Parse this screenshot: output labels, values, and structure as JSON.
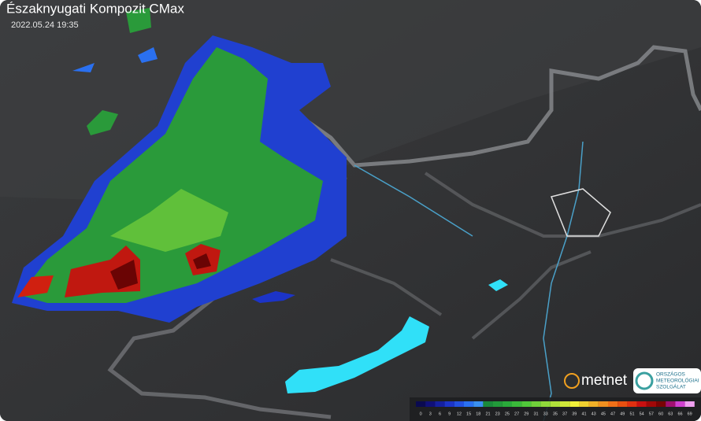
{
  "header": {
    "title": "Északnyugati Kompozit CMax",
    "timestamp": "2022.05.24 19:35"
  },
  "logos": {
    "metnet": "metnet",
    "omsz": [
      "ORSZÁGOS",
      "METEOROLÓGIAI",
      "SZOLGÁLAT"
    ]
  },
  "scale": [
    {
      "label": 0,
      "color": "#0a0a50"
    },
    {
      "label": 3,
      "color": "#101078"
    },
    {
      "label": 6,
      "color": "#1520a0"
    },
    {
      "label": 9,
      "color": "#1c34c8"
    },
    {
      "label": 12,
      "color": "#2250e0"
    },
    {
      "label": 15,
      "color": "#2a70f0"
    },
    {
      "label": 18,
      "color": "#3a90f0"
    },
    {
      "label": 21,
      "color": "#1a8a3a"
    },
    {
      "label": 23,
      "color": "#229a3a"
    },
    {
      "label": 25,
      "color": "#2aaa3a"
    },
    {
      "label": 27,
      "color": "#3aba3a"
    },
    {
      "label": 29,
      "color": "#50c83a"
    },
    {
      "label": 31,
      "color": "#70d03a"
    },
    {
      "label": 33,
      "color": "#90d83a"
    },
    {
      "label": 35,
      "color": "#b0e03a"
    },
    {
      "label": 37,
      "color": "#d0e83a"
    },
    {
      "label": 39,
      "color": "#f0f03a"
    },
    {
      "label": 41,
      "color": "#f0d030"
    },
    {
      "label": 43,
      "color": "#f0b028"
    },
    {
      "label": 45,
      "color": "#f09020"
    },
    {
      "label": 47,
      "color": "#f07018"
    },
    {
      "label": 49,
      "color": "#e85010"
    },
    {
      "label": 51,
      "color": "#e03010"
    },
    {
      "label": 54,
      "color": "#c81010"
    },
    {
      "label": 57,
      "color": "#a00808"
    },
    {
      "label": 60,
      "color": "#780404"
    },
    {
      "label": 63,
      "color": "#a01070"
    },
    {
      "label": 66,
      "color": "#d040d0"
    },
    {
      "label": 69,
      "color": "#f0a0f0"
    }
  ]
}
